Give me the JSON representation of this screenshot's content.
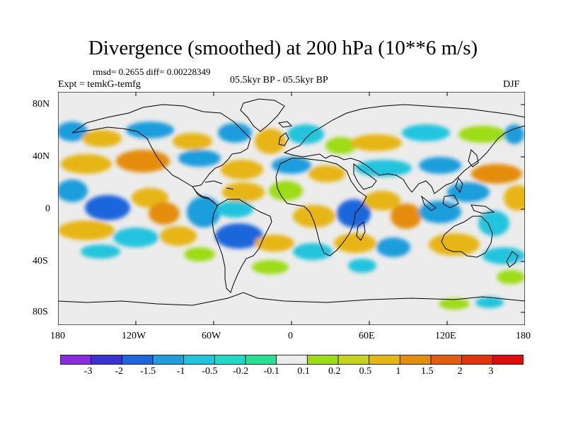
{
  "title": "Divergence (smoothed) at 200 hPa (10**6 m/s)",
  "stats": "rmsd= 0.2655 diff= 0.00228349",
  "experiment": "Expt = temkG-temfg",
  "period": "05.5kyr BP - 05.5kyr BP",
  "season": "DJF",
  "y_axis_labels": [
    "80N",
    "40N",
    "0",
    "40S",
    "80S"
  ],
  "x_axis_labels": [
    "180",
    "120W",
    "60W",
    "0",
    "60E",
    "120E",
    "180"
  ],
  "legend": {
    "labels": [
      "-3",
      "-2",
      "-1.5",
      "-1",
      "-0.5",
      "-0.2",
      "-0.1",
      "0.1",
      "0.2",
      "0.5",
      "1",
      "1.5",
      "2",
      "3"
    ],
    "colors": [
      "#8a2be2",
      "#3b32d6",
      "#1e66dc",
      "#1f9ddc",
      "#21c4dd",
      "#22d8c6",
      "#28e093",
      "#ececec",
      "#9edc19",
      "#c6d21c",
      "#e7b514",
      "#e48d10",
      "#e25b0e",
      "#e2340a",
      "#e00c0c"
    ]
  },
  "field_colors": {
    "neg_strong": "#1e66dc",
    "neg": "#1f9ddc",
    "neg_light": "#21c4dd",
    "neutral": "#ececec",
    "pos_light": "#9edc19",
    "pos": "#e7b514",
    "pos_strong": "#e48d10"
  }
}
